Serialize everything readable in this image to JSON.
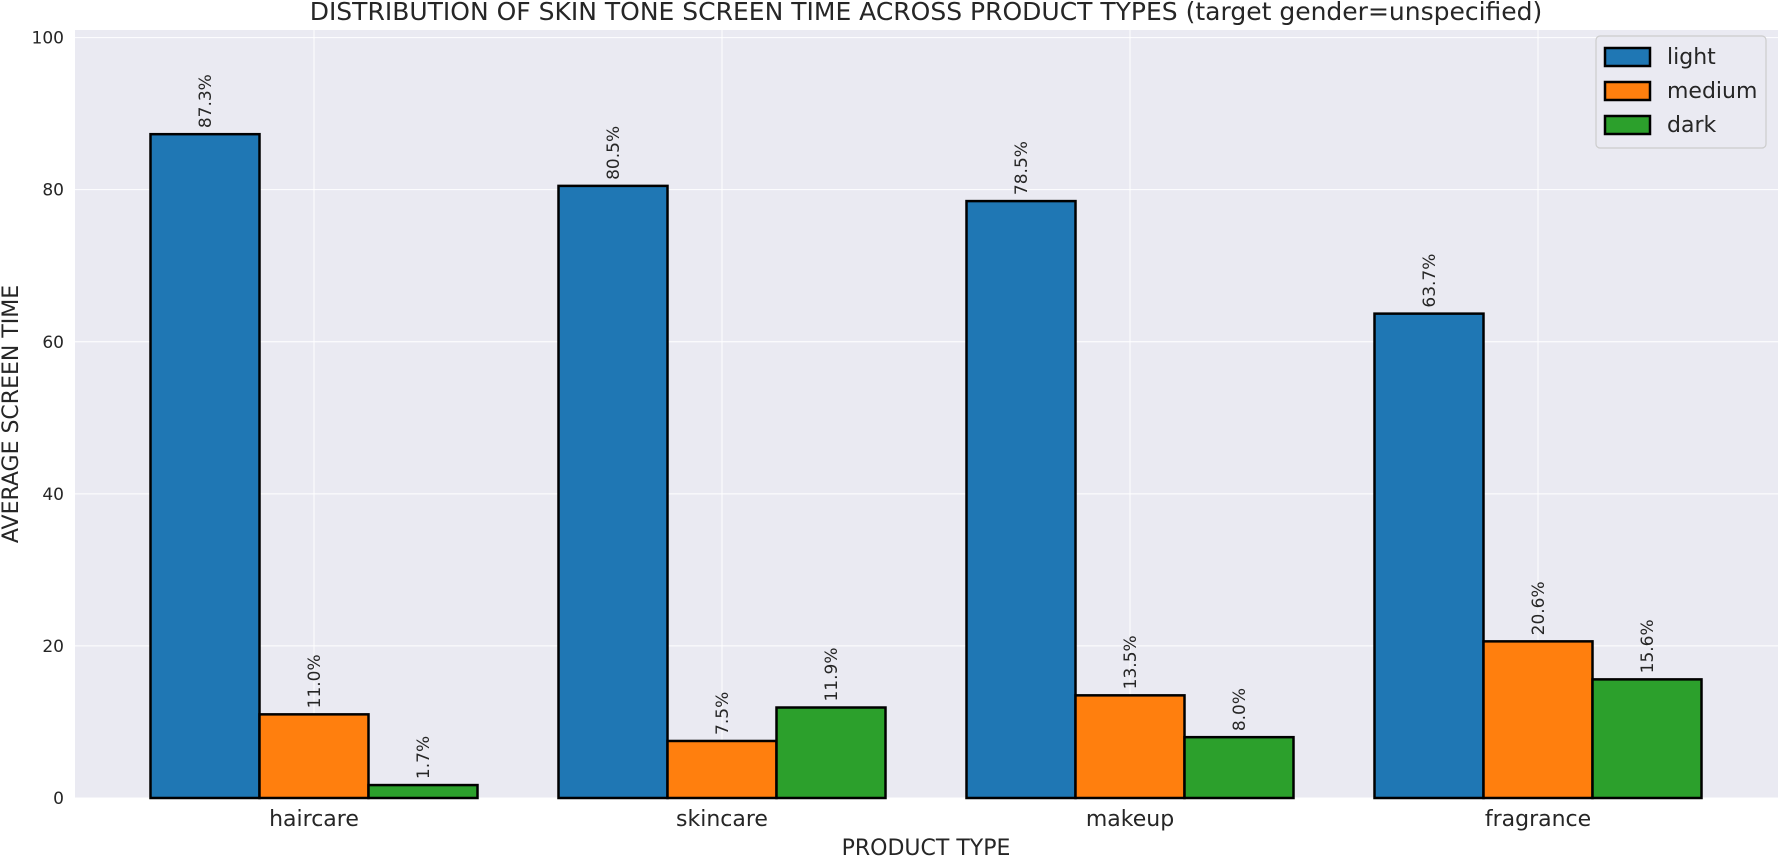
{
  "chart_data": {
    "type": "bar",
    "title": "DISTRIBUTION OF SKIN TONE SCREEN TIME ACROSS PRODUCT TYPES (target gender=unspecified)",
    "xlabel": "PRODUCT TYPE",
    "ylabel": "AVERAGE SCREEN TIME",
    "categories": [
      "haircare",
      "skincare",
      "makeup",
      "fragrance"
    ],
    "ylim": [
      0,
      101
    ],
    "yticks": [
      0,
      20,
      40,
      60,
      80,
      100
    ],
    "grid": true,
    "legend_position": "top-right",
    "series": [
      {
        "name": "light",
        "color": "#1f77b4",
        "values": [
          87.3,
          80.5,
          78.5,
          63.7
        ],
        "labels": [
          "87.3%",
          "80.5%",
          "78.5%",
          "63.7%"
        ]
      },
      {
        "name": "medium",
        "color": "#ff7f0e",
        "values": [
          11.0,
          7.5,
          13.5,
          20.6
        ],
        "labels": [
          "11.0%",
          "7.5%",
          "13.5%",
          "20.6%"
        ]
      },
      {
        "name": "dark",
        "color": "#2ca02c",
        "values": [
          1.7,
          11.9,
          8.0,
          15.6
        ],
        "labels": [
          "1.7%",
          "11.9%",
          "8.0%",
          "15.6%"
        ]
      }
    ]
  }
}
